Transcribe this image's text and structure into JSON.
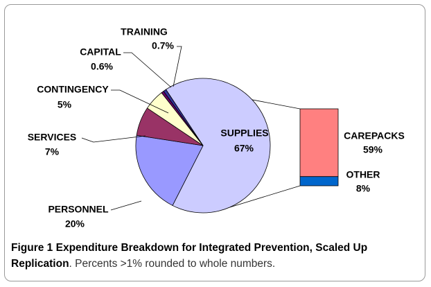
{
  "chart_data": {
    "type": "pie-of-bar",
    "categories": [
      "SUPPLIES",
      "PERSONNEL",
      "SERVICES",
      "CONTINGENCY",
      "CAPITAL",
      "TRAINING"
    ],
    "values": [
      67,
      20,
      7,
      5,
      0.6,
      0.7
    ],
    "value_labels": [
      "67%",
      "20%",
      "7%",
      "5%",
      "0.6%",
      "0.7%"
    ],
    "colors": [
      "#ccccff",
      "#9999ff",
      "#993366",
      "#ffffcc",
      "#660066",
      "#333399"
    ],
    "bar": {
      "categories": [
        "CAREPACKS",
        "OTHER"
      ],
      "values": [
        59,
        8
      ],
      "value_labels": [
        "59%",
        "8%"
      ],
      "colors": [
        "#ff8080",
        "#0066cc"
      ]
    }
  },
  "caption": {
    "label": "Figure 1",
    "title": "Expenditure Breakdown for Integrated Prevention, Scaled Up Replication",
    "text": ". Percents >1% rounded to whole numbers."
  }
}
